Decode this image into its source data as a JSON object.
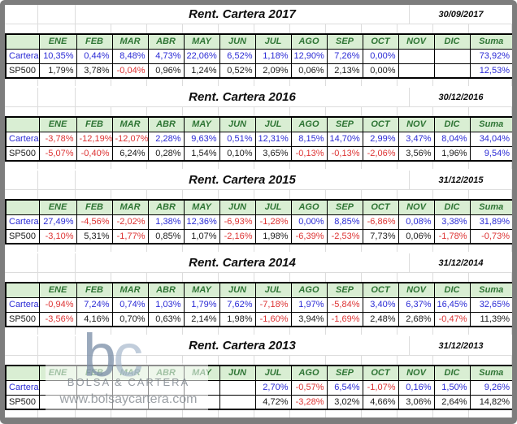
{
  "months": [
    "ENE",
    "FEB",
    "MAR",
    "ABR",
    "MAY",
    "JUN",
    "JUL",
    "AGO",
    "SEP",
    "OCT",
    "NOV",
    "DIC"
  ],
  "suma_label": "Suma",
  "row_labels": {
    "cartera": "Cartera",
    "sp500": "SP500"
  },
  "sections": [
    {
      "year": "2017",
      "title": "Rent. Cartera 2017",
      "date": "30/09/2017",
      "cartera": {
        "values": [
          "10,35%",
          "0,44%",
          "8,48%",
          "4,73%",
          "22,06%",
          "6,52%",
          "1,18%",
          "12,90%",
          "7,26%",
          "0,00%",
          "",
          ""
        ],
        "suma": "73,92%",
        "suma_color": "blue"
      },
      "sp500": {
        "values": [
          "1,79%",
          "3,78%",
          "-0,04%",
          "0,96%",
          "1,24%",
          "0,52%",
          "2,09%",
          "0,06%",
          "2,13%",
          "0,00%",
          "",
          ""
        ],
        "suma": "12,53%",
        "suma_color": "blue"
      }
    },
    {
      "year": "2016",
      "title": "Rent. Cartera 2016",
      "date": "30/12/2016",
      "cartera": {
        "values": [
          "-3,78%",
          "-12,19%",
          "-12,07%",
          "2,28%",
          "9,63%",
          "0,51%",
          "12,31%",
          "8,15%",
          "14,70%",
          "2,99%",
          "3,47%",
          "8,04%"
        ],
        "suma": "34,04%",
        "suma_color": "blue"
      },
      "sp500": {
        "values": [
          "-5,07%",
          "-0,40%",
          "6,24%",
          "0,28%",
          "1,54%",
          "0,10%",
          "3,65%",
          "-0,13%",
          "-0,13%",
          "-2,06%",
          "3,56%",
          "1,96%"
        ],
        "suma": "9,54%",
        "suma_color": "blue"
      }
    },
    {
      "year": "2015",
      "title": "Rent. Cartera 2015",
      "date": "31/12/2015",
      "cartera": {
        "values": [
          "27,49%",
          "-4,56%",
          "-2,02%",
          "1,38%",
          "12,36%",
          "-6,93%",
          "-1,28%",
          "0,00%",
          "8,85%",
          "-6,86%",
          "0,08%",
          "3,38%"
        ],
        "suma": "31,89%",
        "suma_color": "blue"
      },
      "sp500": {
        "values": [
          "-3,10%",
          "5,31%",
          "-1,77%",
          "0,85%",
          "1,07%",
          "-2,16%",
          "1,98%",
          "-6,39%",
          "-2,53%",
          "7,73%",
          "0,06%",
          "-1,78%"
        ],
        "suma": "-0,73%",
        "suma_color": "red"
      }
    },
    {
      "year": "2014",
      "title": "Rent. Cartera 2014",
      "date": "31/12/2014",
      "cartera": {
        "values": [
          "-0,94%",
          "7,24%",
          "0,74%",
          "1,03%",
          "1,79%",
          "7,62%",
          "-7,18%",
          "1,97%",
          "-5,84%",
          "3,40%",
          "6,37%",
          "16,45%"
        ],
        "suma": "32,65%",
        "suma_color": "blue"
      },
      "sp500": {
        "values": [
          "-3,56%",
          "4,16%",
          "0,70%",
          "0,63%",
          "2,14%",
          "1,98%",
          "-1,60%",
          "3,94%",
          "-1,69%",
          "2,48%",
          "2,68%",
          "-0,47%"
        ],
        "suma": "11,39%",
        "suma_color": "black"
      }
    },
    {
      "year": "2013",
      "title": "Rent. Cartera 2013",
      "date": "31/12/2013",
      "cartera": {
        "values": [
          "",
          "",
          "",
          "",
          "",
          "",
          "2,70%",
          "-0,57%",
          "6,54%",
          "-1,07%",
          "0,16%",
          "1,50%"
        ],
        "suma": "9,26%",
        "suma_color": "blue"
      },
      "sp500": {
        "values": [
          "",
          "",
          "",
          "",
          "",
          "",
          "4,72%",
          "-3,28%",
          "3,02%",
          "4,66%",
          "3,06%",
          "2,64%"
        ],
        "suma": "14,82%",
        "suma_color": "black"
      }
    }
  ],
  "watermark": {
    "logo_b": "b",
    "logo_c": "c",
    "line1": "BOLSA & CARTERA",
    "line2": "www.bolsaycartera.com"
  },
  "colors": {
    "positive_blue": "#2b2bd5",
    "negative_red": "#dd3333",
    "neutral_black": "#1b1b1b",
    "header_green_bg": "#d9eed3",
    "header_green_text": "#2f7535",
    "grid_line": "#dcdcdc",
    "frame_gray": "#7d7d7d"
  }
}
